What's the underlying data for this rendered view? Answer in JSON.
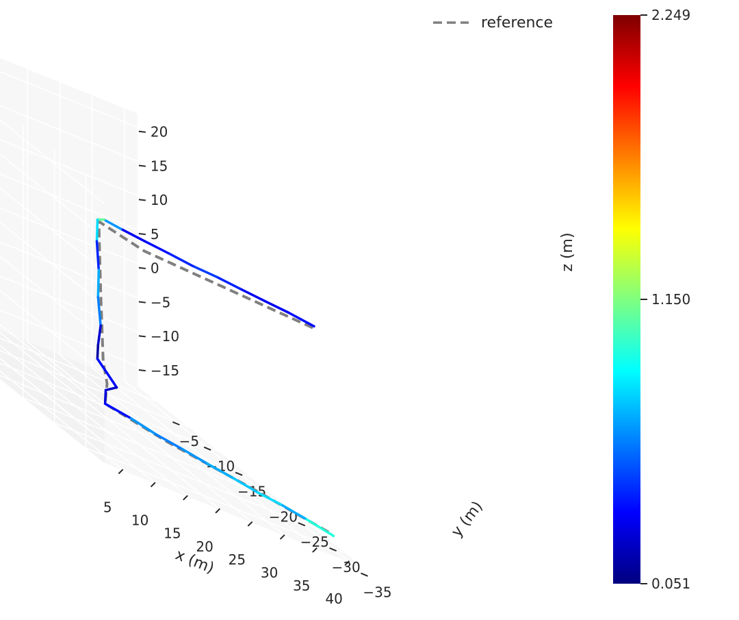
{
  "chart_data": {
    "type": "line",
    "projection": "3d",
    "title": "",
    "xlabel": "x (m)",
    "ylabel": "y (m)",
    "zlabel": "z (m)",
    "xlim": [
      2,
      42
    ],
    "ylim": [
      -38,
      -2
    ],
    "zlim": [
      -18,
      22
    ],
    "x_ticks": [
      "5",
      "10",
      "15",
      "20",
      "25",
      "30",
      "35",
      "40"
    ],
    "y_ticks": [
      "−35",
      "−30",
      "−25",
      "−20",
      "−15",
      "−10",
      "−5"
    ],
    "z_ticks": [
      "−15",
      "−10",
      "−5",
      "0",
      "5",
      "10",
      "15",
      "20"
    ],
    "grid": true,
    "legend": {
      "entries": [
        "reference"
      ],
      "position": "top-right",
      "style": "dashed"
    },
    "colorbar": {
      "colormap": "jet",
      "min": 0.051,
      "max": 2.249,
      "tick_labels": [
        "2.249",
        "1.150",
        "0.051"
      ],
      "ticks": [
        2.249,
        1.15,
        0.051
      ]
    },
    "series": [
      {
        "name": "reference",
        "style": "dashed",
        "color": "#7f7f7f",
        "points": [
          [
            40,
            -32,
            12
          ],
          [
            26,
            -33,
            13
          ],
          [
            12,
            -34,
            14
          ],
          [
            4,
            -35,
            16
          ],
          [
            4,
            -35.3,
            6
          ],
          [
            4,
            -35.7,
            -4
          ],
          [
            4.5,
            -35.8,
            -7
          ],
          [
            4,
            -36,
            -10
          ],
          [
            14,
            -35.8,
            -12
          ],
          [
            28,
            -35.5,
            -14
          ],
          [
            40,
            -35,
            -16
          ]
        ]
      },
      {
        "name": "",
        "color_scale": "jet",
        "points": [
          [
            40.2,
            -32,
            12.3,
            0.5
          ],
          [
            36,
            -32.3,
            12.9,
            0.2
          ],
          [
            32,
            -32.6,
            13.3,
            0.4
          ],
          [
            28,
            -32.8,
            13.7,
            0.2
          ],
          [
            24,
            -33.2,
            14.2,
            0.6
          ],
          [
            20,
            -33.5,
            14.5,
            0.3
          ],
          [
            16,
            -33.7,
            15.0,
            0.5
          ],
          [
            12,
            -34.1,
            15.5,
            0.2
          ],
          [
            8,
            -34.4,
            16.0,
            0.4
          ],
          [
            5,
            -34.8,
            16.5,
            0.9
          ],
          [
            3.8,
            -35.0,
            16.2,
            1.3
          ],
          [
            3.6,
            -35.1,
            13,
            0.3
          ],
          [
            3.7,
            -35.3,
            9,
            0.5
          ],
          [
            3.5,
            -35.4,
            5,
            0.9
          ],
          [
            3.8,
            -35.5,
            1,
            0.3
          ],
          [
            3.4,
            -35.5,
            -2,
            0.15
          ],
          [
            3.2,
            -35.6,
            -4,
            0.1
          ],
          [
            4.6,
            -35.7,
            -5.5,
            0.6
          ],
          [
            6.0,
            -35.8,
            -7,
            0.1
          ],
          [
            4.2,
            -35.9,
            -8,
            0.3
          ],
          [
            4.0,
            -36.0,
            -10,
            0.2
          ],
          [
            8,
            -36.0,
            -10.6,
            0.5
          ],
          [
            12,
            -35.9,
            -11.5,
            0.8
          ],
          [
            16,
            -35.9,
            -12.1,
            0.4
          ],
          [
            20,
            -35.8,
            -12.8,
            0.9
          ],
          [
            24,
            -35.7,
            -13.4,
            0.5
          ],
          [
            28,
            -35.6,
            -14.1,
            1.0
          ],
          [
            32,
            -35.4,
            -14.6,
            0.6
          ],
          [
            36,
            -35.2,
            -15.3,
            0.8
          ],
          [
            40.3,
            -35.0,
            -16.2,
            1.1
          ]
        ]
      }
    ]
  }
}
